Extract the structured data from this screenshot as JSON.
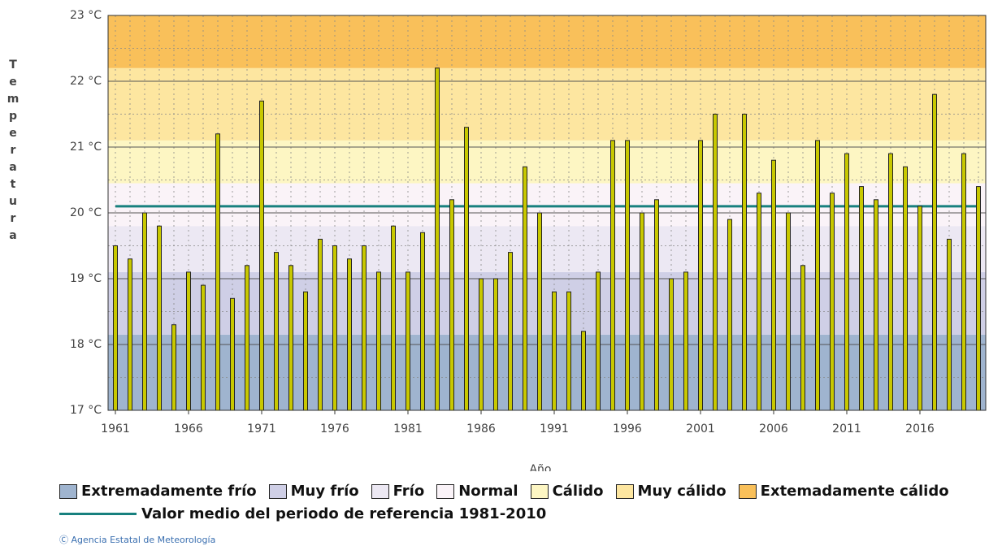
{
  "chart_data": {
    "type": "bar",
    "y_label": "Temperatura",
    "x_label": "Año",
    "x": [
      1961,
      1962,
      1963,
      1964,
      1965,
      1966,
      1967,
      1968,
      1969,
      1970,
      1971,
      1972,
      1973,
      1974,
      1975,
      1976,
      1977,
      1978,
      1979,
      1980,
      1981,
      1982,
      1983,
      1984,
      1985,
      1986,
      1987,
      1988,
      1989,
      1990,
      1991,
      1992,
      1993,
      1994,
      1995,
      1996,
      1997,
      1998,
      1999,
      2000,
      2001,
      2002,
      2003,
      2004,
      2005,
      2006,
      2007,
      2008,
      2009,
      2010,
      2011,
      2012,
      2013,
      2014,
      2015,
      2016,
      2017,
      2018,
      2019,
      2020
    ],
    "values": [
      19.5,
      19.3,
      20.0,
      19.8,
      18.3,
      19.1,
      18.9,
      21.2,
      18.7,
      19.2,
      21.7,
      19.4,
      19.2,
      18.8,
      19.6,
      19.5,
      19.3,
      19.5,
      19.1,
      19.8,
      19.1,
      19.7,
      22.2,
      20.2,
      21.3,
      19.0,
      19.0,
      19.4,
      20.7,
      20.0,
      18.8,
      18.8,
      18.2,
      19.1,
      21.1,
      21.1,
      20.0,
      20.2,
      19.0,
      19.1,
      21.1,
      21.5,
      19.9,
      21.5,
      20.3,
      20.8,
      20.0,
      19.2,
      21.1,
      20.3,
      20.9,
      20.4,
      20.2,
      20.9,
      20.7,
      20.1,
      21.8,
      19.6,
      20.9,
      20.4
    ],
    "color": "#c8c800",
    "xlim": [
      1960.5,
      2020.5
    ],
    "xticks": [
      1961,
      1966,
      1971,
      1976,
      1981,
      1986,
      1991,
      1996,
      2001,
      2006,
      2011,
      2016
    ],
    "ylim": [
      17,
      23
    ],
    "yticks": [
      {
        "value": 17,
        "label": "17 °C"
      },
      {
        "value": 18,
        "label": "18 °C"
      },
      {
        "value": 19,
        "label": "19 °C"
      },
      {
        "value": 20,
        "label": "20 °C"
      },
      {
        "value": 21,
        "label": "21 °C"
      },
      {
        "value": 22,
        "label": "22 °C"
      },
      {
        "value": 23,
        "label": "23 °C"
      }
    ],
    "yminor": [
      17.5,
      18.5,
      19.5,
      20.5,
      21.5,
      22.5
    ],
    "grid": true,
    "bands": [
      {
        "name": "Extremadamente frío",
        "color": "#9fb4cf",
        "from": 17,
        "to": 18.15
      },
      {
        "name": "Muy frío",
        "color": "#cfcfe6",
        "from": 18.15,
        "to": 19.1
      },
      {
        "name": "Frío",
        "color": "#ece8f3",
        "from": 19.1,
        "to": 19.8
      },
      {
        "name": "Normal",
        "color": "#faf3f8",
        "from": 19.8,
        "to": 20.45
      },
      {
        "name": "Cálido",
        "color": "#fdf6c3",
        "from": 20.45,
        "to": 21.1
      },
      {
        "name": "Muy cálido",
        "color": "#fde6a0",
        "from": 21.1,
        "to": 22.2
      },
      {
        "name": "Extemadamente cálido",
        "color": "#f9c05a",
        "from": 22.2,
        "to": 23
      }
    ],
    "reference": {
      "name": "Valor medio del periodo de referencia 1981-2010",
      "value": 20.1,
      "color": "#17807e"
    },
    "source": "Ⓒ Agencia Estatal de Meteorología"
  }
}
